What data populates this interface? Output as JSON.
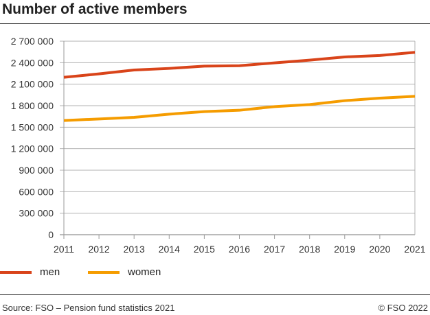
{
  "chart_data": {
    "type": "line",
    "title": "Number of active members",
    "x": [
      2011,
      2012,
      2013,
      2014,
      2015,
      2016,
      2017,
      2018,
      2019,
      2020,
      2021
    ],
    "xtick_labels": [
      "2011",
      "2012",
      "2013",
      "2014",
      "2015",
      "2016",
      "2017",
      "2018",
      "2019",
      "2020",
      "2021"
    ],
    "ylim": [
      0,
      2700000
    ],
    "ytick_values": [
      0,
      300000,
      600000,
      900000,
      1200000,
      1500000,
      1800000,
      2100000,
      2400000,
      2700000
    ],
    "ytick_labels": [
      "0",
      "300 000",
      "600 000",
      "900 000",
      "1 200 000",
      "1 500 000",
      "1 800 000",
      "2 100 000",
      "2 400 000",
      "2 700 000"
    ],
    "grid": true,
    "legend_position": "bottom",
    "series": [
      {
        "name": "men",
        "color": "#d9441a",
        "values": [
          2196000,
          2244000,
          2298000,
          2320000,
          2352000,
          2358000,
          2397000,
          2435000,
          2480000,
          2500000,
          2544000
        ]
      },
      {
        "name": "women",
        "color": "#f59c00",
        "values": [
          1593000,
          1615000,
          1637000,
          1682000,
          1717000,
          1736000,
          1787000,
          1816000,
          1870000,
          1905000,
          1931000
        ]
      }
    ]
  },
  "footer": {
    "source": "Source: FSO – Pension fund statistics 2021",
    "copyright": "© FSO 2022"
  }
}
